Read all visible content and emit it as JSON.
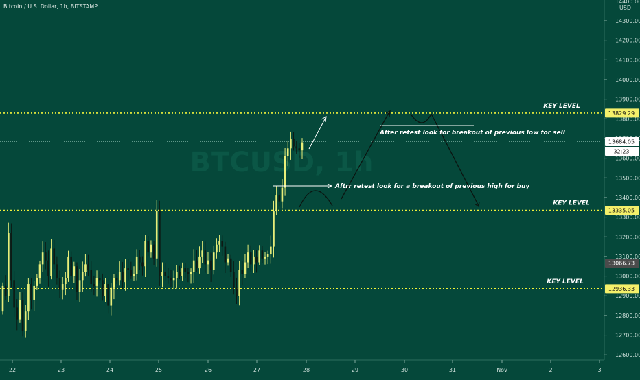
{
  "header": {
    "title": "Bitcoin / U.S. Dollar, 1h, BITSTAMP"
  },
  "watermark": "BTCUSD, 1h",
  "price_axis": {
    "currency": "USD",
    "ticks": [
      "14400.00",
      "14300.00",
      "14200.00",
      "14100.00",
      "14000.00",
      "13900.00",
      "13800.00",
      "13700.00",
      "13600.00",
      "13500.00",
      "13400.00",
      "13300.00",
      "13200.00",
      "13100.00",
      "13000.00",
      "12900.00",
      "12800.00",
      "12700.00",
      "12600.00"
    ],
    "tick_values": [
      14400,
      14300,
      14200,
      14100,
      14000,
      13900,
      13800,
      13700,
      13600,
      13500,
      13400,
      13300,
      13200,
      13100,
      13000,
      12900,
      12800,
      12700,
      12600
    ],
    "badges": [
      {
        "label": "13829.29",
        "value": 13829.29,
        "style": "yellow"
      },
      {
        "label": "13684.05",
        "value": 13684.05,
        "style": "white"
      },
      {
        "label": "32:23",
        "value": 13625,
        "style": "white"
      },
      {
        "label": "13335.05",
        "value": 13335.05,
        "style": "yellow"
      },
      {
        "label": "13066.73",
        "value": 13066.73,
        "style": "gray"
      },
      {
        "label": "12936.33",
        "value": 12936.33,
        "style": "yellow"
      }
    ]
  },
  "time_axis": {
    "labels": [
      "22",
      "23",
      "24",
      "25",
      "26",
      "27",
      "28",
      "29",
      "30",
      "31",
      "Nov",
      "2",
      "3"
    ]
  },
  "key_levels": [
    {
      "label": "KEY LEVEL",
      "value": 13829.29
    },
    {
      "label": "KEY LEVEL",
      "value": 13335.05
    },
    {
      "label": "KEY LEVEL",
      "value": 12936.33
    }
  ],
  "last_price_line": 13684.05,
  "annotations": [
    {
      "text": "After retest look for breakout of previous low for sell"
    },
    {
      "text": "Aftrr retest look for a breakout of previous high for buy"
    }
  ],
  "colors": {
    "background": "#05483a",
    "candle_up": "#e8ee7a",
    "candle_down": "#0d1a14",
    "key_level": "#f2f23a",
    "drawing": "#0b1410",
    "text": "#ffffff"
  },
  "chart_data": {
    "type": "candlestick",
    "symbol": "Bitcoin / U.S. Dollar",
    "interval": "1h",
    "exchange": "BITSTAMP",
    "x": [
      "22",
      "23",
      "24",
      "25",
      "26",
      "27",
      "28",
      "29",
      "30",
      "31",
      "Nov",
      "2",
      "3"
    ],
    "ylim": [
      12560,
      14440
    ],
    "candles_close": [
      12950,
      12900,
      13220,
      12980,
      12840,
      12780,
      12880,
      12720,
      12820,
      12960,
      12880,
      12950,
      12990,
      13060,
      13120,
      13080,
      13000,
      13140,
      13060,
      12990,
      12930,
      12960,
      12990,
      13100,
      13000,
      13050,
      12920,
      12980,
      13020,
      13060,
      13030,
      12960,
      12950,
      12990,
      12980,
      12900,
      12960,
      12850,
      12940,
      12990,
      12980,
      13020,
      12970,
      13040,
      13030,
      13000,
      13010,
      13100,
      13070,
      13050,
      13180,
      13120,
      13160,
      13090,
      13330,
      13000,
      13020,
      13000,
      12990,
      12980,
      12990,
      13020,
      13000,
      13040,
      13020,
      13010,
      13020,
      13080,
      13040,
      13100,
      13130,
      13060,
      13080,
      13030,
      13120,
      13160,
      13180,
      13150,
      13070,
      13090,
      13020,
      12940,
      12900,
      13030,
      13010,
      13070,
      13120,
      13060,
      13100,
      13070,
      13130,
      13090,
      13100,
      13110,
      13150,
      13330,
      13410,
      13380,
      13450,
      13610,
      13650,
      13700,
      13660,
      13650,
      13640,
      13680
    ]
  }
}
